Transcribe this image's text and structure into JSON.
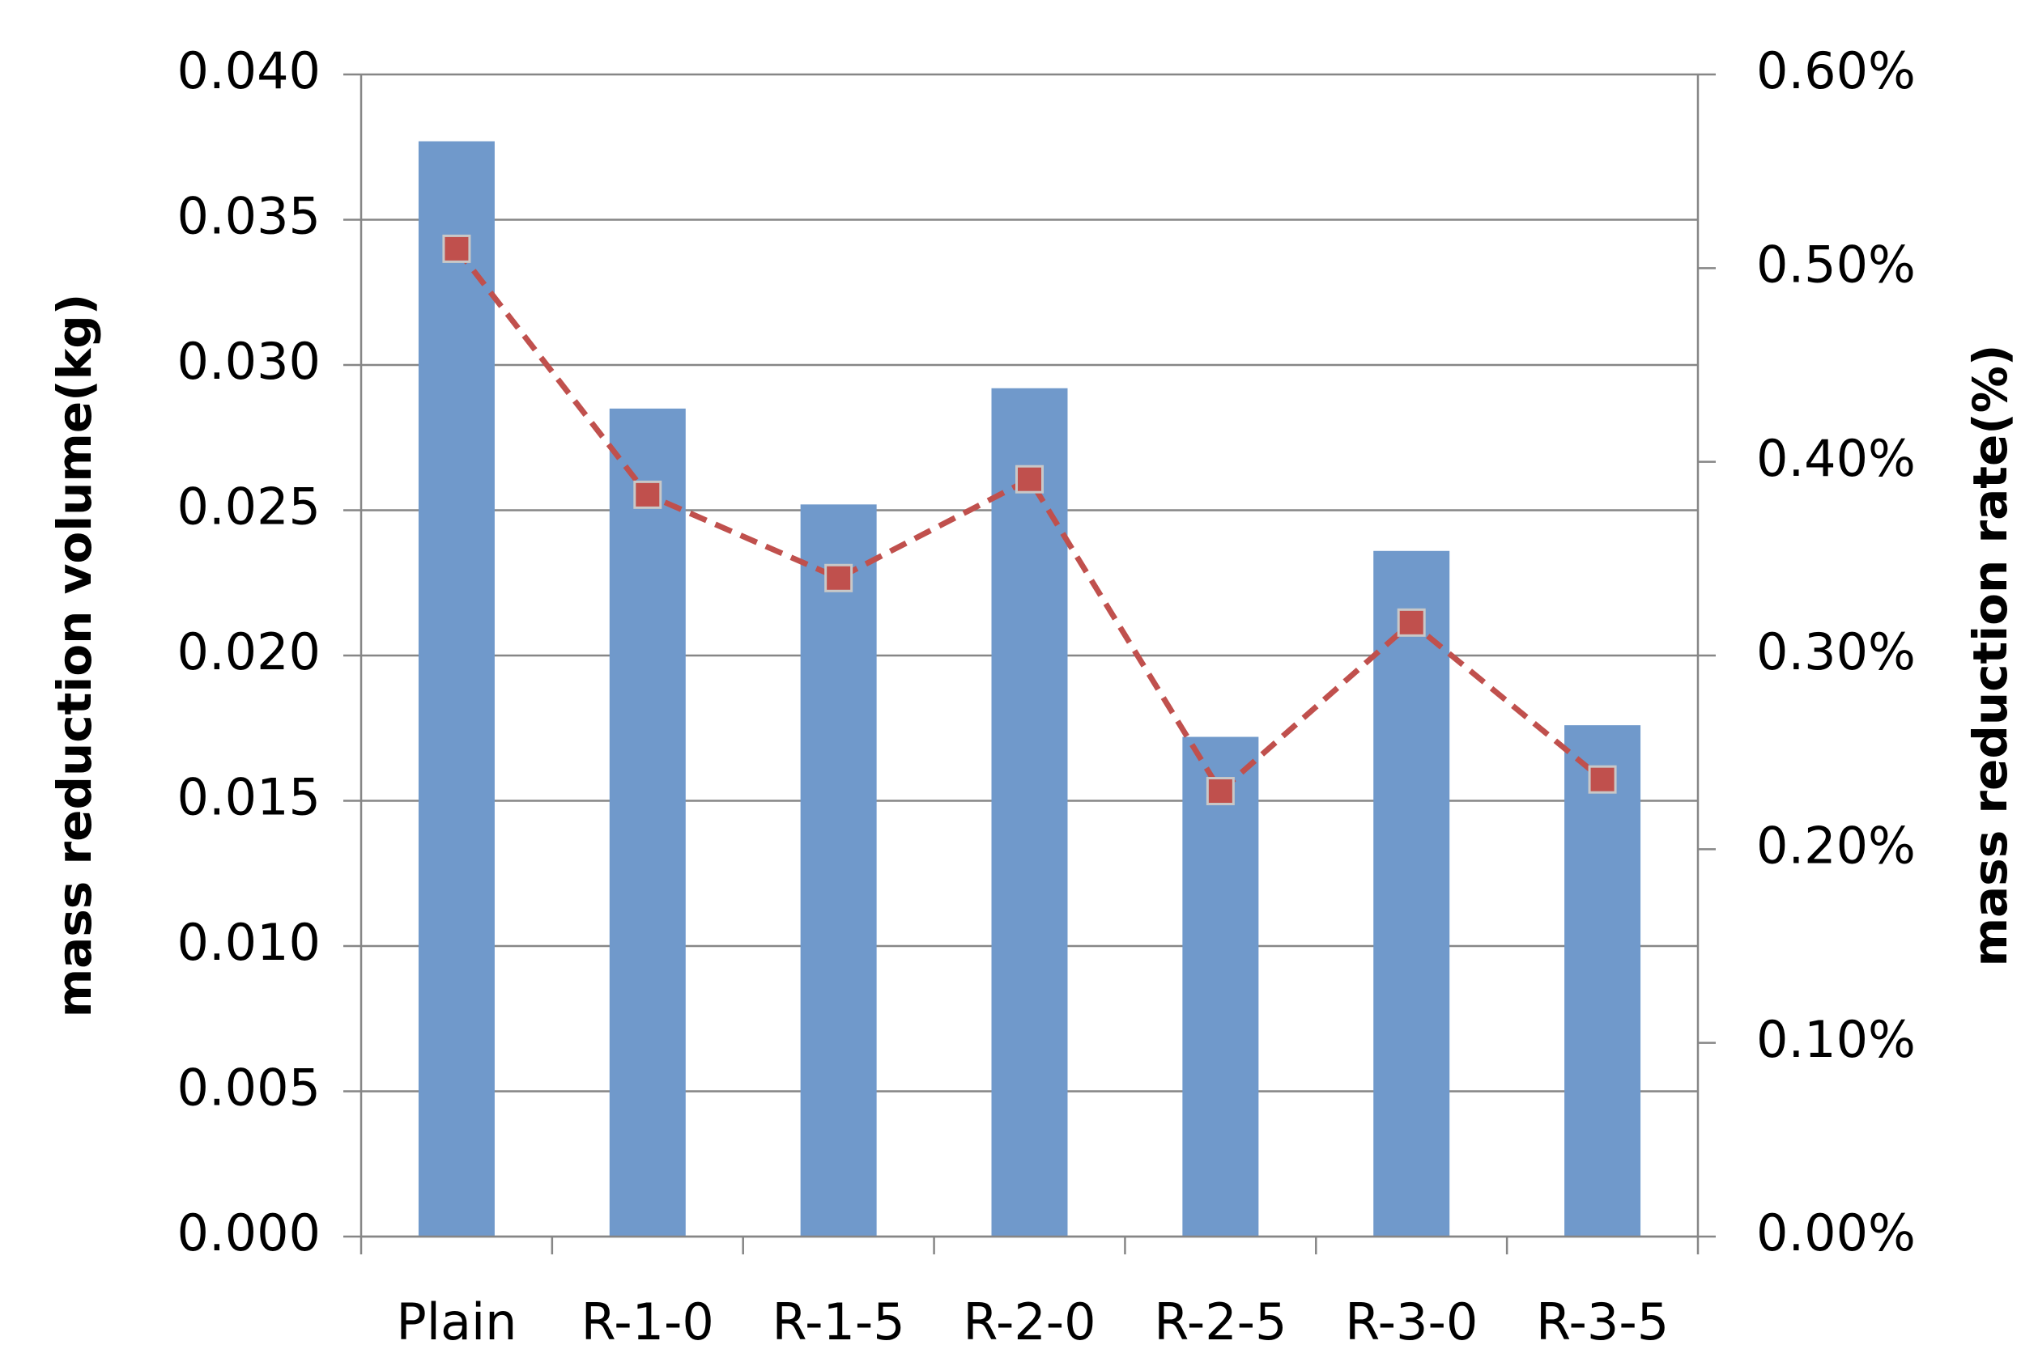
{
  "chart_data": {
    "type": "bar",
    "y_label": "mass reduction volume(kg)",
    "y2_label": "mass reduction rate(%)",
    "categories": [
      "Plain",
      "R-1-0",
      "R-1-5",
      "R-2-0",
      "R-2-5",
      "R-3-0",
      "R-3-5"
    ],
    "series": [
      {
        "type": "bar",
        "color": "#7099cb",
        "values": [
          0.0377,
          0.0285,
          0.0252,
          0.0292,
          0.0172,
          0.0236,
          0.0176
        ]
      },
      {
        "type": "line",
        "axis": "y2",
        "color": "#c0504d",
        "values": [
          0.51,
          0.383,
          0.34,
          0.391,
          0.23,
          0.317,
          0.236
        ]
      }
    ],
    "ylim": [
      0,
      0.04
    ],
    "yticks": [
      {
        "value": 0,
        "label": "0.000"
      },
      0.005,
      {
        "value": 0.01,
        "label": "0.010"
      },
      0.015,
      {
        "value": 0.02,
        "label": "0.020"
      },
      0.025,
      {
        "value": 0.03,
        "label": "0.030"
      },
      0.035,
      {
        "value": 0.04,
        "label": "0.040"
      }
    ],
    "y2lim": [
      0,
      0.6
    ],
    "y2ticks": [
      {
        "value": 0,
        "label": "0.00%"
      },
      {
        "value": 0.1,
        "label": "0.10%"
      },
      {
        "value": 0.2,
        "label": "0.20%"
      },
      {
        "value": 0.3,
        "label": "0.30%"
      },
      {
        "value": 0.4,
        "label": "0.40%"
      },
      {
        "value": 0.5,
        "label": "0.50%"
      },
      {
        "value": 0.6,
        "label": "0.60%"
      }
    ],
    "grid": true
  }
}
